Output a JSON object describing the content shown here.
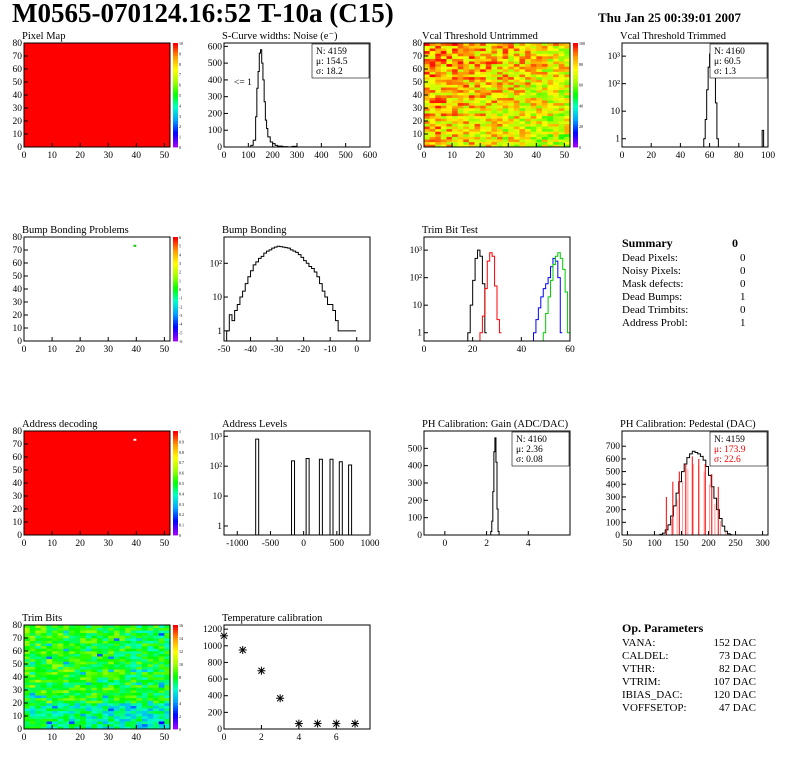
{
  "header": {
    "title": "M0565-070124.16:52 T-10a (C15)",
    "date": "Thu Jan 25 00:39:01 2007"
  },
  "chart_data": [
    {
      "id": "pixel-map",
      "type": "heatmap",
      "title": "Pixel Map",
      "xlim": [
        0,
        52
      ],
      "ylim": [
        0,
        80
      ],
      "xticks": [
        0,
        10,
        20,
        30,
        40,
        50
      ],
      "yticks": [
        0,
        10,
        20,
        30,
        40,
        50,
        60,
        70,
        80
      ],
      "fill": "uniform",
      "fill_color": "#ff0000",
      "zticks": [
        "10",
        "9",
        "8",
        "7",
        "6",
        "5",
        "4",
        "3",
        "2",
        "1",
        "0"
      ]
    },
    {
      "id": "scurve-widths",
      "type": "line",
      "title": "S-Curve widths: Noise (e⁻)",
      "xlim": [
        0,
        600
      ],
      "ylim": [
        0,
        620
      ],
      "xticks": [
        0,
        100,
        200,
        300,
        400,
        500,
        600
      ],
      "yticks": [
        0,
        100,
        200,
        300,
        400,
        500,
        600
      ],
      "annotation": "<= 1",
      "stats": [
        "N: 4159",
        "μ: 154.5",
        "σ: 18.2"
      ],
      "x": [
        100,
        110,
        120,
        130,
        135,
        140,
        145,
        150,
        155,
        160,
        165,
        170,
        175,
        180,
        190,
        200,
        210,
        220,
        240,
        260,
        280,
        300
      ],
      "y": [
        0,
        10,
        40,
        180,
        350,
        450,
        560,
        580,
        500,
        400,
        270,
        160,
        110,
        60,
        30,
        20,
        10,
        5,
        2,
        1,
        4,
        0
      ]
    },
    {
      "id": "vcal-untrimmed",
      "type": "heatmap",
      "title": "Vcal Threshold Untrimmed",
      "xlim": [
        0,
        52
      ],
      "ylim": [
        0,
        80
      ],
      "xticks": [
        0,
        10,
        20,
        30,
        40,
        50
      ],
      "yticks": [
        0,
        10,
        20,
        30,
        40,
        50,
        60,
        70,
        80
      ],
      "fill": "untrimmed",
      "zticks": [
        "100",
        "80",
        "60",
        "40",
        "20",
        "0"
      ]
    },
    {
      "id": "vcal-trimmed",
      "type": "line",
      "title": "Vcal Threshold Trimmed",
      "xlim": [
        0,
        100
      ],
      "ylim": [
        0.5,
        3000
      ],
      "log_y": true,
      "xticks": [
        0,
        20,
        40,
        60,
        80,
        100
      ],
      "yticks": [
        1,
        10,
        100,
        1000
      ],
      "stats": [
        "N: 4160",
        "μ: 60.5",
        "σ: 1.3"
      ],
      "x": [
        56,
        57,
        58,
        59,
        60,
        61,
        62,
        63,
        64,
        65,
        66,
        96,
        97
      ],
      "y": [
        1,
        5,
        60,
        400,
        1200,
        1500,
        900,
        200,
        20,
        1,
        0,
        2,
        0
      ]
    },
    {
      "id": "bump-problems",
      "type": "heatmap",
      "title": "Bump Bonding Problems",
      "xlim": [
        0,
        52
      ],
      "ylim": [
        0,
        80
      ],
      "xticks": [
        0,
        10,
        20,
        30,
        40,
        50
      ],
      "yticks": [
        0,
        10,
        20,
        30,
        40,
        50,
        60,
        70,
        80
      ],
      "fill": "none",
      "highlight": {
        "x": 39,
        "y": 73,
        "color": "#00cc00"
      },
      "zticks": [
        "6",
        "5",
        "4",
        "3",
        "2",
        "1",
        "0",
        "-1",
        "-2",
        "-3",
        "-4",
        "-5",
        "-6"
      ]
    },
    {
      "id": "bump-bonding",
      "type": "line",
      "title": "Bump Bonding",
      "xlim": [
        -50,
        5
      ],
      "ylim": [
        0.5,
        600
      ],
      "log_y": true,
      "xticks": [
        -50,
        -40,
        -30,
        -20,
        -10,
        0
      ],
      "yticks": [
        1,
        10,
        100
      ],
      "x": [
        -49,
        -48,
        -47,
        -46,
        -45,
        -44,
        -43,
        -42,
        -41,
        -40,
        -39,
        -38,
        -37,
        -36,
        -35,
        -34,
        -33,
        -32,
        -31,
        -30,
        -29,
        -28,
        -27,
        -26,
        -25,
        -24,
        -23,
        -22,
        -21,
        -20,
        -19,
        -18,
        -17,
        -16,
        -15,
        -14,
        -13,
        -12,
        -11,
        -10,
        -9,
        -8,
        -7,
        -1
      ],
      "y": [
        1,
        3,
        2,
        4,
        6,
        10,
        15,
        25,
        40,
        60,
        90,
        110,
        140,
        160,
        200,
        230,
        250,
        280,
        300,
        320,
        310,
        300,
        290,
        280,
        250,
        230,
        210,
        180,
        150,
        120,
        100,
        80,
        70,
        55,
        40,
        25,
        15,
        10,
        6,
        6,
        4,
        2,
        1,
        1
      ]
    },
    {
      "id": "trim-bit-test",
      "type": "line",
      "title": "Trim Bit Test",
      "xlim": [
        0,
        60
      ],
      "ylim": [
        0.5,
        3000
      ],
      "log_y": true,
      "xticks": [
        0,
        20,
        40,
        60
      ],
      "yticks": [
        1,
        10,
        100,
        1000
      ],
      "series": [
        {
          "color": "#000000",
          "x": [
            18,
            19,
            20,
            21,
            22,
            23,
            24,
            25
          ],
          "y": [
            1,
            10,
            80,
            500,
            1000,
            600,
            60,
            1
          ]
        },
        {
          "color": "#ff0000",
          "x": [
            23,
            24,
            25,
            26,
            27,
            28,
            29,
            30,
            31
          ],
          "y": [
            1,
            4,
            40,
            400,
            800,
            600,
            50,
            3,
            1
          ]
        },
        {
          "color": "#0000ff",
          "x": [
            45,
            46,
            47,
            48,
            49,
            50,
            51,
            52,
            53,
            54,
            55,
            56
          ],
          "y": [
            1,
            3,
            8,
            20,
            40,
            60,
            100,
            250,
            500,
            400,
            100,
            1
          ]
        },
        {
          "color": "#00cc00",
          "x": [
            49,
            50,
            51,
            52,
            53,
            54,
            55,
            56,
            57,
            58,
            59
          ],
          "y": [
            1,
            5,
            20,
            80,
            300,
            600,
            800,
            500,
            200,
            30,
            1
          ]
        }
      ]
    },
    {
      "id": "address-decoding",
      "type": "heatmap",
      "title": "Address decoding",
      "xlim": [
        0,
        52
      ],
      "ylim": [
        0,
        80
      ],
      "xticks": [
        0,
        10,
        20,
        30,
        40,
        50
      ],
      "yticks": [
        0,
        10,
        20,
        30,
        40,
        50,
        60,
        70,
        80
      ],
      "fill": "uniform",
      "fill_color": "#ff0000",
      "highlight": {
        "x": 39,
        "y": 73,
        "color": "#ffffff"
      },
      "zticks": [
        "1",
        "0.9",
        "0.8",
        "0.7",
        "0.6",
        "0.5",
        "0.4",
        "0.3",
        "0.2",
        "0.1",
        "0"
      ]
    },
    {
      "id": "address-levels",
      "type": "line",
      "title": "Address Levels",
      "xlim": [
        -1200,
        1000
      ],
      "ylim": [
        0.5,
        1500
      ],
      "log_y": true,
      "xticks": [
        -1000,
        -500,
        0,
        500,
        1000
      ],
      "yticks": [
        1,
        10,
        100,
        1000
      ],
      "peaks": [
        {
          "x": -700,
          "h": 800
        },
        {
          "x": -160,
          "h": 150
        },
        {
          "x": 60,
          "h": 180
        },
        {
          "x": 260,
          "h": 170
        },
        {
          "x": 420,
          "h": 170
        },
        {
          "x": 560,
          "h": 140
        },
        {
          "x": 700,
          "h": 110
        }
      ]
    },
    {
      "id": "ph-gain",
      "type": "line",
      "title": "PH Calibration: Gain (ADC/DAC)",
      "xlim": [
        -1,
        6
      ],
      "ylim": [
        0,
        600
      ],
      "xticks": [
        0,
        2,
        4
      ],
      "yticks": [
        0,
        100,
        200,
        300,
        400,
        500
      ],
      "stats": [
        "N: 4160",
        "μ: 2.36",
        "σ: 0.08"
      ],
      "x": [
        2.1,
        2.2,
        2.25,
        2.3,
        2.35,
        2.4,
        2.45,
        2.5,
        2.55,
        2.6
      ],
      "y": [
        0,
        20,
        80,
        250,
        480,
        560,
        420,
        150,
        20,
        0
      ]
    },
    {
      "id": "ph-pedestal",
      "type": "bar",
      "title": "PH Calibration: Pedestal (DAC)",
      "xlim": [
        40,
        310
      ],
      "ylim": [
        0,
        820
      ],
      "xticks": [
        50,
        100,
        150,
        200,
        250,
        300
      ],
      "yticks": [
        0,
        100,
        200,
        300,
        400,
        500,
        600,
        700
      ],
      "stats": [
        "N: 4159",
        "μ: 173.9",
        "σ: 22.6"
      ],
      "stats_color": "#ff0000",
      "hist_x": [
        110,
        115,
        120,
        125,
        130,
        135,
        140,
        145,
        150,
        155,
        160,
        165,
        170,
        175,
        180,
        185,
        190,
        195,
        200,
        205,
        210,
        215,
        220,
        225,
        230,
        235,
        240
      ],
      "hist_y": [
        5,
        15,
        40,
        80,
        150,
        230,
        330,
        420,
        500,
        560,
        610,
        640,
        660,
        650,
        640,
        620,
        590,
        540,
        470,
        380,
        290,
        200,
        130,
        70,
        30,
        10,
        3
      ],
      "red_bars_x": [
        122,
        134,
        146,
        158,
        170,
        182,
        194,
        206,
        218
      ],
      "red_bars_y": [
        300,
        420,
        500,
        560,
        620,
        600,
        560,
        480,
        380
      ]
    },
    {
      "id": "trim-bits",
      "type": "heatmap",
      "title": "Trim Bits",
      "xlim": [
        0,
        52
      ],
      "ylim": [
        0,
        80
      ],
      "xticks": [
        0,
        10,
        20,
        30,
        40,
        50
      ],
      "yticks": [
        0,
        10,
        20,
        30,
        40,
        50,
        60,
        70,
        80
      ],
      "fill": "trimbits",
      "zticks": [
        "16",
        "14",
        "12",
        "10",
        "8",
        "6",
        "4",
        "2",
        "0"
      ]
    },
    {
      "id": "temperature-calibration",
      "type": "scatter",
      "title": "Temperature calibration",
      "xlim": [
        0,
        7.8
      ],
      "ylim": [
        0,
        1250
      ],
      "xticks": [
        0,
        2,
        4,
        6
      ],
      "yticks": [
        0,
        200,
        400,
        600,
        800,
        1000,
        1200
      ],
      "x": [
        0,
        1,
        2,
        3,
        4,
        5,
        6,
        7
      ],
      "y": [
        1120,
        950,
        700,
        370,
        65,
        65,
        65,
        65
      ]
    }
  ],
  "summary": {
    "title": "Summary",
    "total": "0",
    "rows": [
      {
        "label": "Dead Pixels:",
        "value": "0"
      },
      {
        "label": "Noisy Pixels:",
        "value": "0"
      },
      {
        "label": "Mask defects:",
        "value": "0"
      },
      {
        "label": "Dead Bumps:",
        "value": "1"
      },
      {
        "label": "Dead Trimbits:",
        "value": "0"
      },
      {
        "label": "Address Probl:",
        "value": "1"
      }
    ]
  },
  "op_params": {
    "title": "Op. Parameters",
    "rows": [
      {
        "label": "VANA:",
        "value": "152 DAC"
      },
      {
        "label": "CALDEL:",
        "value": "73 DAC"
      },
      {
        "label": "VTHR:",
        "value": "82 DAC"
      },
      {
        "label": "VTRIM:",
        "value": "107 DAC"
      },
      {
        "label": "IBIAS_DAC:",
        "value": "120 DAC"
      },
      {
        "label": "VOFFSETOP:",
        "value": "47 DAC"
      }
    ]
  }
}
